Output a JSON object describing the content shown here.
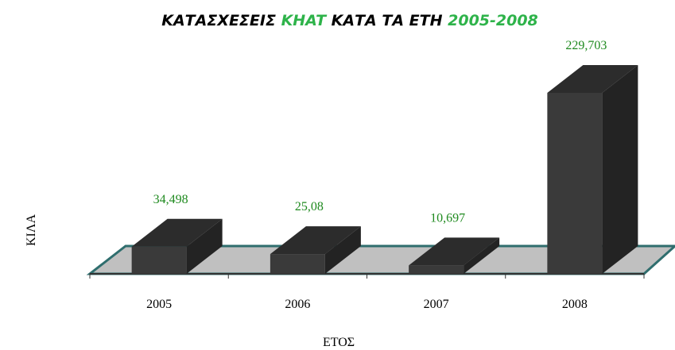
{
  "chart_data": {
    "type": "bar3d",
    "title_parts": [
      {
        "text": "ΚΑΤΑΣΧΕΣΕΙΣ",
        "color": "#000000"
      },
      {
        "text": "KHAT",
        "color": "#2eb34a"
      },
      {
        "text": "ΚΑΤΑ ΤΑ ΕΤΗ",
        "color": "#000000"
      },
      {
        "text": "2005-2008",
        "color": "#2eb34a"
      }
    ],
    "x_label": "ΕΤΟΣ",
    "y_label": "ΚΙΛΑ",
    "categories": [
      "2005",
      "2006",
      "2007",
      "2008"
    ],
    "values": [
      34.498,
      25.08,
      10.697,
      229.703
    ],
    "value_labels": [
      "34,498",
      "25,08",
      "10,697",
      "229,703"
    ],
    "color": "#3a3a3a",
    "label_color": "#1f8a1f",
    "floor_color": "#c0c0c0",
    "floor_edge_color": "#2f6e6e"
  }
}
